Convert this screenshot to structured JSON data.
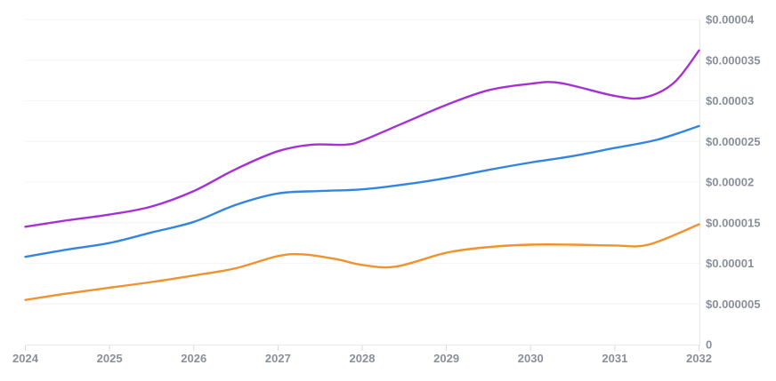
{
  "colors": {
    "background": "#ffffff",
    "gridline": "#f4f4f5",
    "axis_line": "#e7e8ea",
    "tick_mark": "#d5d8dd",
    "label_text": "#8a8f99",
    "series_purple": "#a531d4",
    "series_blue": "#3286e2",
    "series_orange": "#f0922d"
  },
  "chart_data": {
    "type": "line",
    "title": "",
    "xlabel": "",
    "ylabel": "",
    "legend": "none",
    "grid": {
      "horizontal": true,
      "vertical": false
    },
    "x_axis": {
      "position": "bottom",
      "range": [
        2024,
        2032
      ],
      "tick_labels": [
        "2024",
        "2025",
        "2026",
        "2027",
        "2028",
        "2029",
        "2030",
        "2031",
        "2032"
      ],
      "tick_values": [
        2024,
        2025,
        2026,
        2027,
        2028,
        2029,
        2030,
        2031,
        2032
      ]
    },
    "y_axis": {
      "position": "right",
      "unit": "$",
      "range": [
        0,
        4e-05
      ],
      "tick_step": 5e-06,
      "tick_labels": [
        "$0.00004",
        "$0.000035",
        "$0.00003",
        "$0.000025",
        "$0.00002",
        "$0.000015",
        "$0.00001",
        "$0.000005",
        "0"
      ],
      "tick_values": [
        4e-05,
        3.5e-05,
        3e-05,
        2.5e-05,
        2e-05,
        1.5e-05,
        1e-05,
        5e-06,
        0
      ]
    },
    "series": [
      {
        "name": "purple",
        "color": "#a531d4",
        "points": [
          [
            2024,
            1.45e-05
          ],
          [
            2024.5,
            1.53e-05
          ],
          [
            2025,
            1.6e-05
          ],
          [
            2025.5,
            1.7e-05
          ],
          [
            2026,
            1.89e-05
          ],
          [
            2026.5,
            2.16e-05
          ],
          [
            2027,
            2.38e-05
          ],
          [
            2027.4,
            2.46e-05
          ],
          [
            2027.8,
            2.46e-05
          ],
          [
            2028,
            2.51e-05
          ],
          [
            2028.5,
            2.73e-05
          ],
          [
            2029,
            2.95e-05
          ],
          [
            2029.5,
            3.13e-05
          ],
          [
            2030,
            3.21e-05
          ],
          [
            2030.35,
            3.22e-05
          ],
          [
            2031,
            3.06e-05
          ],
          [
            2031.35,
            3.04e-05
          ],
          [
            2031.7,
            3.22e-05
          ],
          [
            2032,
            3.62e-05
          ]
        ]
      },
      {
        "name": "blue",
        "color": "#3286e2",
        "points": [
          [
            2024,
            1.08e-05
          ],
          [
            2024.5,
            1.17e-05
          ],
          [
            2025,
            1.25e-05
          ],
          [
            2025.5,
            1.38e-05
          ],
          [
            2026,
            1.51e-05
          ],
          [
            2026.5,
            1.72e-05
          ],
          [
            2027,
            1.86e-05
          ],
          [
            2027.5,
            1.89e-05
          ],
          [
            2028,
            1.91e-05
          ],
          [
            2028.5,
            1.97e-05
          ],
          [
            2029,
            2.05e-05
          ],
          [
            2029.5,
            2.15e-05
          ],
          [
            2030,
            2.24e-05
          ],
          [
            2030.5,
            2.32e-05
          ],
          [
            2031,
            2.42e-05
          ],
          [
            2031.5,
            2.52e-05
          ],
          [
            2032,
            2.69e-05
          ]
        ]
      },
      {
        "name": "orange",
        "color": "#f0922d",
        "points": [
          [
            2024,
            5.5e-06
          ],
          [
            2024.5,
            6.3e-06
          ],
          [
            2025,
            7e-06
          ],
          [
            2025.5,
            7.7e-06
          ],
          [
            2026,
            8.5e-06
          ],
          [
            2026.5,
            9.4e-06
          ],
          [
            2027,
            1.09e-05
          ],
          [
            2027.3,
            1.11e-05
          ],
          [
            2027.7,
            1.05e-05
          ],
          [
            2028,
            9.8e-06
          ],
          [
            2028.4,
            9.6e-06
          ],
          [
            2029,
            1.13e-05
          ],
          [
            2029.5,
            1.2e-05
          ],
          [
            2030,
            1.23e-05
          ],
          [
            2030.5,
            1.23e-05
          ],
          [
            2031,
            1.22e-05
          ],
          [
            2031.4,
            1.23e-05
          ],
          [
            2032,
            1.48e-05
          ]
        ]
      }
    ]
  }
}
